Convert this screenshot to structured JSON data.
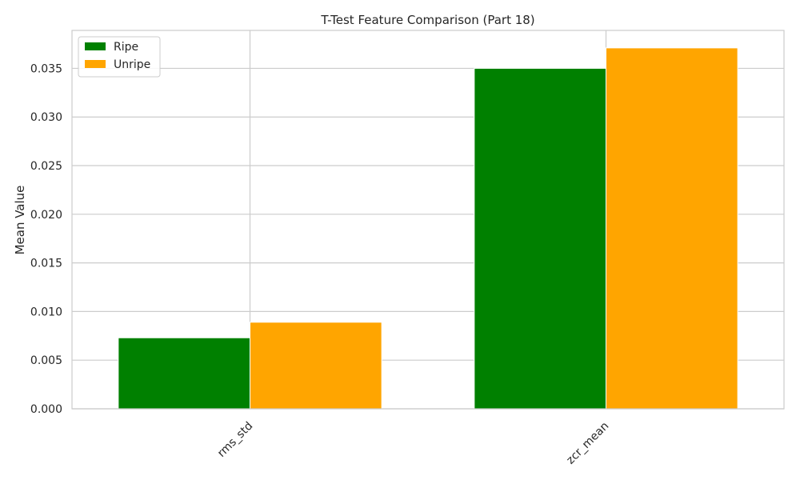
{
  "chart_data": {
    "type": "bar",
    "title": "T-Test Feature Comparison (Part 18)",
    "xlabel": "",
    "ylabel": "Mean Value",
    "categories": [
      "rms_std",
      "zcr_mean"
    ],
    "series": [
      {
        "name": "Ripe",
        "color": "#008000",
        "values": [
          0.0073,
          0.035
        ]
      },
      {
        "name": "Unripe",
        "color": "#ffa500",
        "values": [
          0.0089,
          0.0371
        ]
      }
    ],
    "ylim": [
      0,
      0.0389
    ],
    "yticks": [
      "0.000",
      "0.005",
      "0.010",
      "0.015",
      "0.020",
      "0.025",
      "0.030",
      "0.035"
    ],
    "ytick_values": [
      0,
      0.005,
      0.01,
      0.015,
      0.02,
      0.025,
      0.03,
      0.035
    ],
    "grid": true,
    "legend_position": "top-left"
  }
}
